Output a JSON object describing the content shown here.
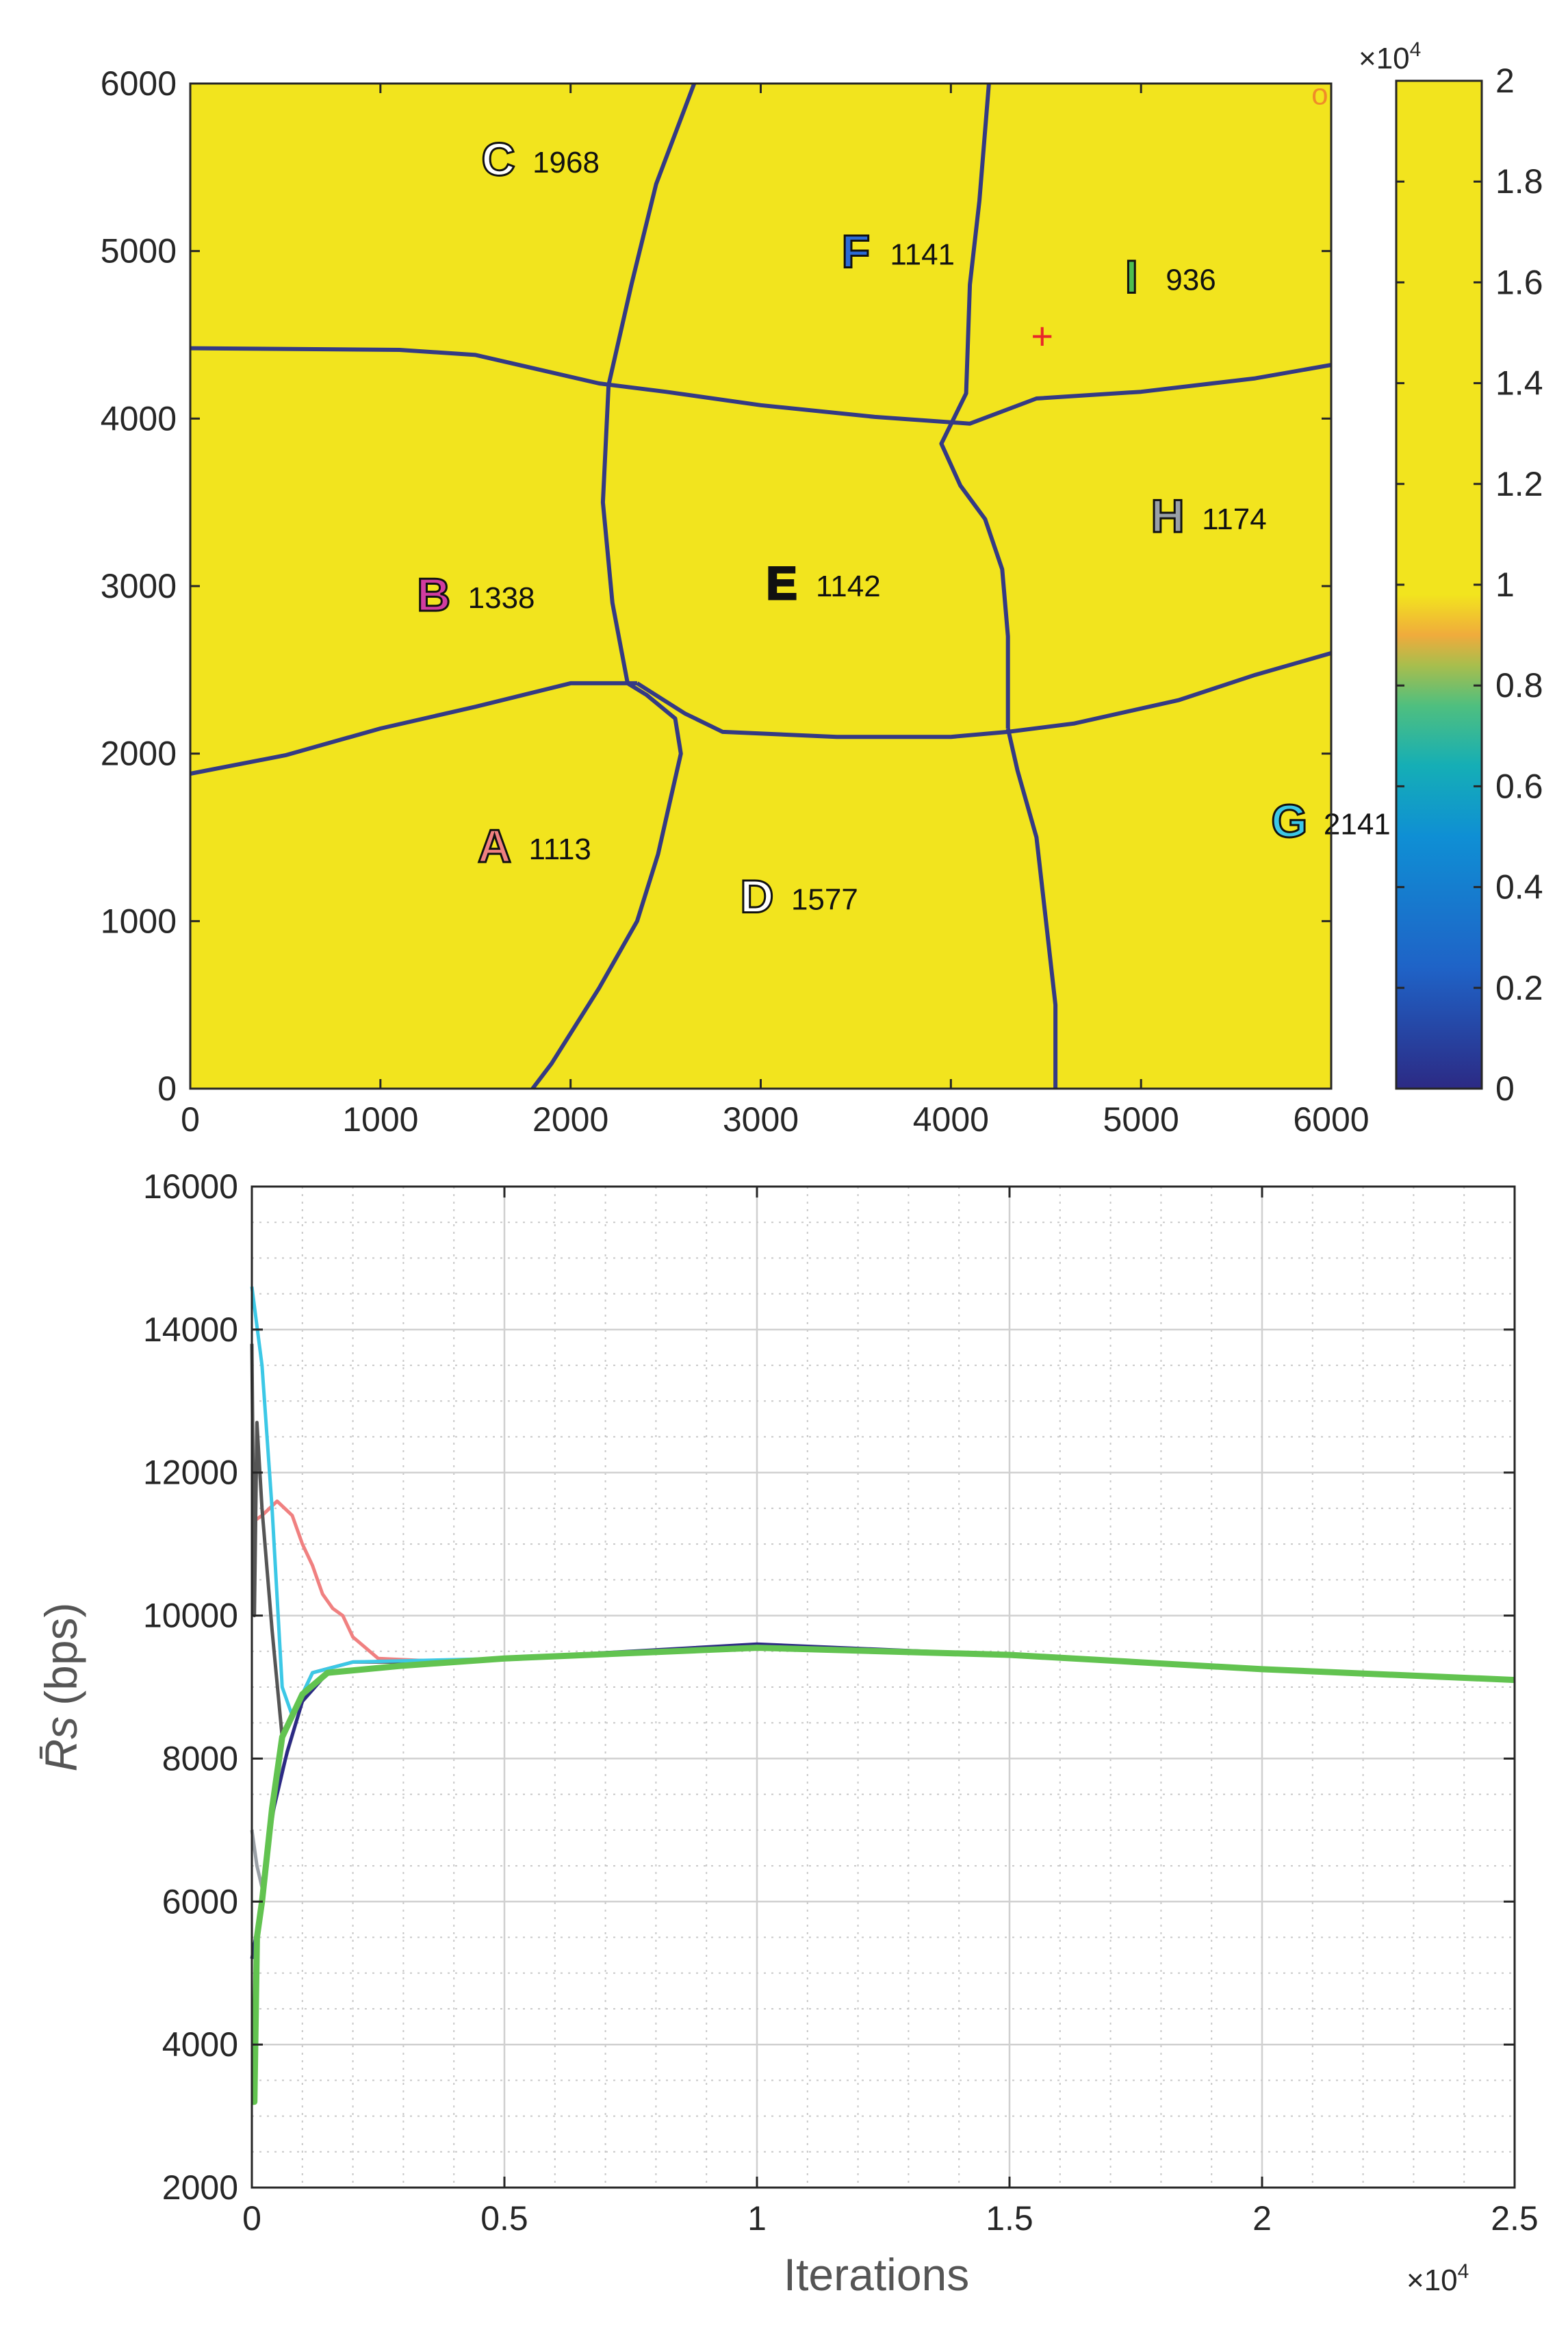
{
  "chart_data": [
    {
      "type": "heatmap",
      "title": "",
      "xlabel": "",
      "ylabel": "",
      "xlim": [
        0,
        6000
      ],
      "ylim": [
        0,
        6000
      ],
      "xticks": [
        "0",
        "1000",
        "2000",
        "3000",
        "4000",
        "5000",
        "6000"
      ],
      "yticks": [
        "0",
        "1000",
        "2000",
        "3000",
        "4000",
        "5000",
        "6000"
      ],
      "colorbar": {
        "range": [
          0,
          20000
        ],
        "multiplier": "×10",
        "multiplier_exponent": "4",
        "ticks": [
          "0",
          "0.2",
          "0.4",
          "0.6",
          "0.8",
          "1",
          "1.2",
          "1.4",
          "1.6",
          "1.8",
          "2"
        ],
        "colors": [
          "#2c2a84",
          "#1f63c7",
          "#0f8fd4",
          "#15aeb6",
          "#4fbf7f",
          "#a8be4d",
          "#f0ab3c",
          "#f2e41e",
          "#f2e41e"
        ]
      },
      "background_color": "#f2e41e",
      "boundary_color": "#343a84",
      "regions": [
        {
          "id": "A",
          "value": "1113",
          "x": 1600,
          "y": 1450,
          "color": "#f08080"
        },
        {
          "id": "B",
          "value": "1338",
          "x": 1280,
          "y": 2950,
          "color": "#d23ca0"
        },
        {
          "id": "C",
          "value": "1968",
          "x": 1620,
          "y": 5550,
          "color": "#ffffff"
        },
        {
          "id": "D",
          "value": "1577",
          "x": 2980,
          "y": 1150,
          "color": "#ffffff"
        },
        {
          "id": "E",
          "value": "1142",
          "x": 3110,
          "y": 3020,
          "color": "#111111"
        },
        {
          "id": "F",
          "value": "1141",
          "x": 3500,
          "y": 5000,
          "color": "#2c6bd6"
        },
        {
          "id": "G",
          "value": "2141",
          "x": 5780,
          "y": 1600,
          "color": "#3cc8e6"
        },
        {
          "id": "H",
          "value": "1174",
          "x": 5140,
          "y": 3420,
          "color": "#9aa0a6"
        },
        {
          "id": "I",
          "value": "936",
          "x": 4950,
          "y": 4850,
          "color": "#4fbf4f"
        }
      ],
      "markers": [
        {
          "symbol": "+",
          "x": 4480,
          "y": 4480,
          "color": "#e8262a"
        },
        {
          "symbol": "o",
          "x": 5940,
          "y": 5940,
          "color": "#f08c28"
        }
      ]
    },
    {
      "type": "line",
      "title": "",
      "xlabel": "Iterations",
      "ylabel": "R̄s (bps)",
      "ylabel_main": "R̄s",
      "ylabel_unit": "(bps)",
      "xlim": [
        0,
        2.5
      ],
      "ylim": [
        2000,
        16000
      ],
      "x_multiplier": "×10",
      "x_multiplier_exponent": "4",
      "xticks": [
        "0",
        "0.5",
        "1",
        "1.5",
        "2",
        "2.5"
      ],
      "yticks": [
        "2000",
        "4000",
        "6000",
        "8000",
        "10000",
        "12000",
        "14000",
        "16000"
      ],
      "grid": true,
      "legend": "none",
      "series": [
        {
          "color": "#f08080",
          "points": [
            [
              0,
              11300
            ],
            [
              0.02,
              11400
            ],
            [
              0.05,
              11600
            ],
            [
              0.08,
              11400
            ],
            [
              0.1,
              11000
            ],
            [
              0.12,
              10700
            ],
            [
              0.14,
              10300
            ],
            [
              0.16,
              10100
            ],
            [
              0.18,
              10000
            ],
            [
              0.2,
              9700
            ],
            [
              0.25,
              9400
            ],
            [
              0.4,
              9350
            ],
            [
              0.7,
              9450
            ],
            [
              1.0,
              9550
            ],
            [
              1.3,
              9500
            ],
            [
              1.6,
              9400
            ],
            [
              2.0,
              9250
            ],
            [
              2.5,
              9100
            ]
          ]
        },
        {
          "color": "#555555",
          "points": [
            [
              0,
              13800
            ],
            [
              0.005,
              10000
            ],
            [
              0.01,
              12700
            ],
            [
              0.02,
              11500
            ],
            [
              0.04,
              9800
            ],
            [
              0.06,
              8300
            ],
            [
              0.08,
              8600
            ],
            [
              0.12,
              9200
            ],
            [
              0.2,
              9350
            ],
            [
              0.4,
              9350
            ],
            [
              0.7,
              9450
            ],
            [
              1.0,
              9550
            ],
            [
              1.3,
              9500
            ],
            [
              1.6,
              9400
            ],
            [
              2.0,
              9250
            ],
            [
              2.5,
              9100
            ]
          ]
        },
        {
          "color": "#9aa0a6",
          "points": [
            [
              0,
              7000
            ],
            [
              0.01,
              6500
            ],
            [
              0.02,
              6200
            ],
            [
              0.05,
              7600
            ],
            [
              0.1,
              8800
            ],
            [
              0.15,
              9200
            ],
            [
              0.3,
              9300
            ],
            [
              0.5,
              9400
            ],
            [
              1.0,
              9550
            ],
            [
              1.5,
              9450
            ],
            [
              2.0,
              9250
            ],
            [
              2.5,
              9100
            ]
          ]
        },
        {
          "color": "#3cc8e6",
          "points": [
            [
              0,
              14600
            ],
            [
              0.02,
              13500
            ],
            [
              0.04,
              11500
            ],
            [
              0.06,
              9000
            ],
            [
              0.08,
              8600
            ],
            [
              0.12,
              9200
            ],
            [
              0.2,
              9350
            ],
            [
              0.5,
              9400
            ],
            [
              1.0,
              9550
            ],
            [
              1.5,
              9450
            ],
            [
              2.0,
              9250
            ],
            [
              2.5,
              9100
            ]
          ]
        },
        {
          "color": "#2c2a84",
          "points": [
            [
              0,
              5200
            ],
            [
              0.02,
              6000
            ],
            [
              0.04,
              7200
            ],
            [
              0.07,
              8100
            ],
            [
              0.1,
              8800
            ],
            [
              0.15,
              9200
            ],
            [
              0.3,
              9300
            ],
            [
              0.5,
              9400
            ],
            [
              1.0,
              9600
            ],
            [
              1.5,
              9450
            ],
            [
              2.0,
              9250
            ],
            [
              2.5,
              9100
            ]
          ]
        },
        {
          "color": "#62c350",
          "points": [
            [
              0,
              3200
            ],
            [
              0.005,
              3200
            ],
            [
              0.01,
              5500
            ],
            [
              0.02,
              6000
            ],
            [
              0.04,
              7300
            ],
            [
              0.06,
              8300
            ],
            [
              0.1,
              8900
            ],
            [
              0.15,
              9200
            ],
            [
              0.3,
              9300
            ],
            [
              0.5,
              9400
            ],
            [
              1.0,
              9550
            ],
            [
              1.5,
              9450
            ],
            [
              2.0,
              9250
            ],
            [
              2.5,
              9100
            ]
          ]
        }
      ]
    }
  ]
}
